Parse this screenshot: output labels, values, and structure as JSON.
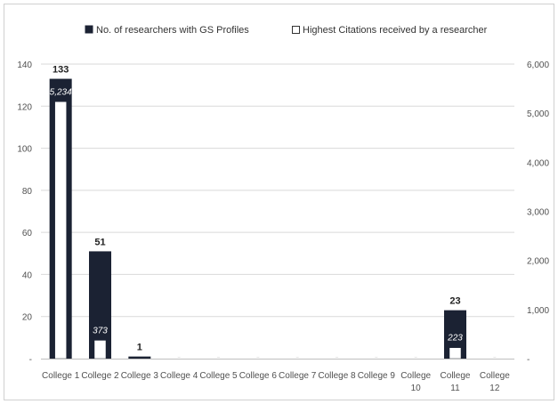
{
  "chart_data": {
    "type": "bar",
    "categories": [
      "College 1",
      "College 2",
      "College 3",
      "College 4",
      "College 5",
      "College 6",
      "College 7",
      "College 8",
      "College 9",
      "College 10",
      "College 11",
      "College 12"
    ],
    "category_lines": [
      [
        "College 1"
      ],
      [
        "College 2"
      ],
      [
        "College 3"
      ],
      [
        "College 4"
      ],
      [
        "College 5"
      ],
      [
        "College 6"
      ],
      [
        "College 7"
      ],
      [
        "College 8"
      ],
      [
        "College 9"
      ],
      [
        "College",
        "10"
      ],
      [
        "College",
        "11"
      ],
      [
        "College",
        "12"
      ]
    ],
    "series": [
      {
        "name": "No. of researchers with GS Profiles",
        "axis": "left",
        "color": "#1b2233",
        "values": [
          133,
          51,
          1,
          0,
          0,
          0,
          0,
          0,
          0,
          0,
          23,
          0
        ],
        "data_labels": [
          "133",
          "51",
          "1",
          "",
          "",
          "",
          "",
          "",
          "",
          "",
          "23",
          ""
        ]
      },
      {
        "name": "Highest Citations received by a researcher",
        "axis": "right",
        "color": "#ffffff",
        "values": [
          5234,
          373,
          0,
          0,
          0,
          0,
          0,
          0,
          0,
          0,
          223,
          0
        ],
        "data_labels": [
          "5,234",
          "373",
          "",
          "",
          "",
          "",
          "",
          "",
          "",
          "",
          "223",
          ""
        ]
      }
    ],
    "y_left": {
      "lim": [
        0,
        140
      ],
      "ticks": [
        "140",
        "120",
        "100",
        "80",
        "60",
        "40",
        "20",
        "-"
      ],
      "tick_values": [
        140,
        120,
        100,
        80,
        60,
        40,
        20,
        0
      ]
    },
    "y_right": {
      "lim": [
        0,
        6000
      ],
      "ticks": [
        "6,000",
        "5,000",
        "4,000",
        "3,000",
        "2,000",
        "1,000",
        "-"
      ],
      "tick_values": [
        6000,
        5000,
        4000,
        3000,
        2000,
        1000,
        0
      ]
    },
    "legend_position": "top",
    "grid": true,
    "colors": {
      "grid": "#d9d9d9",
      "axis": "#bfbfbf",
      "frame": "#d0d0d0"
    }
  }
}
